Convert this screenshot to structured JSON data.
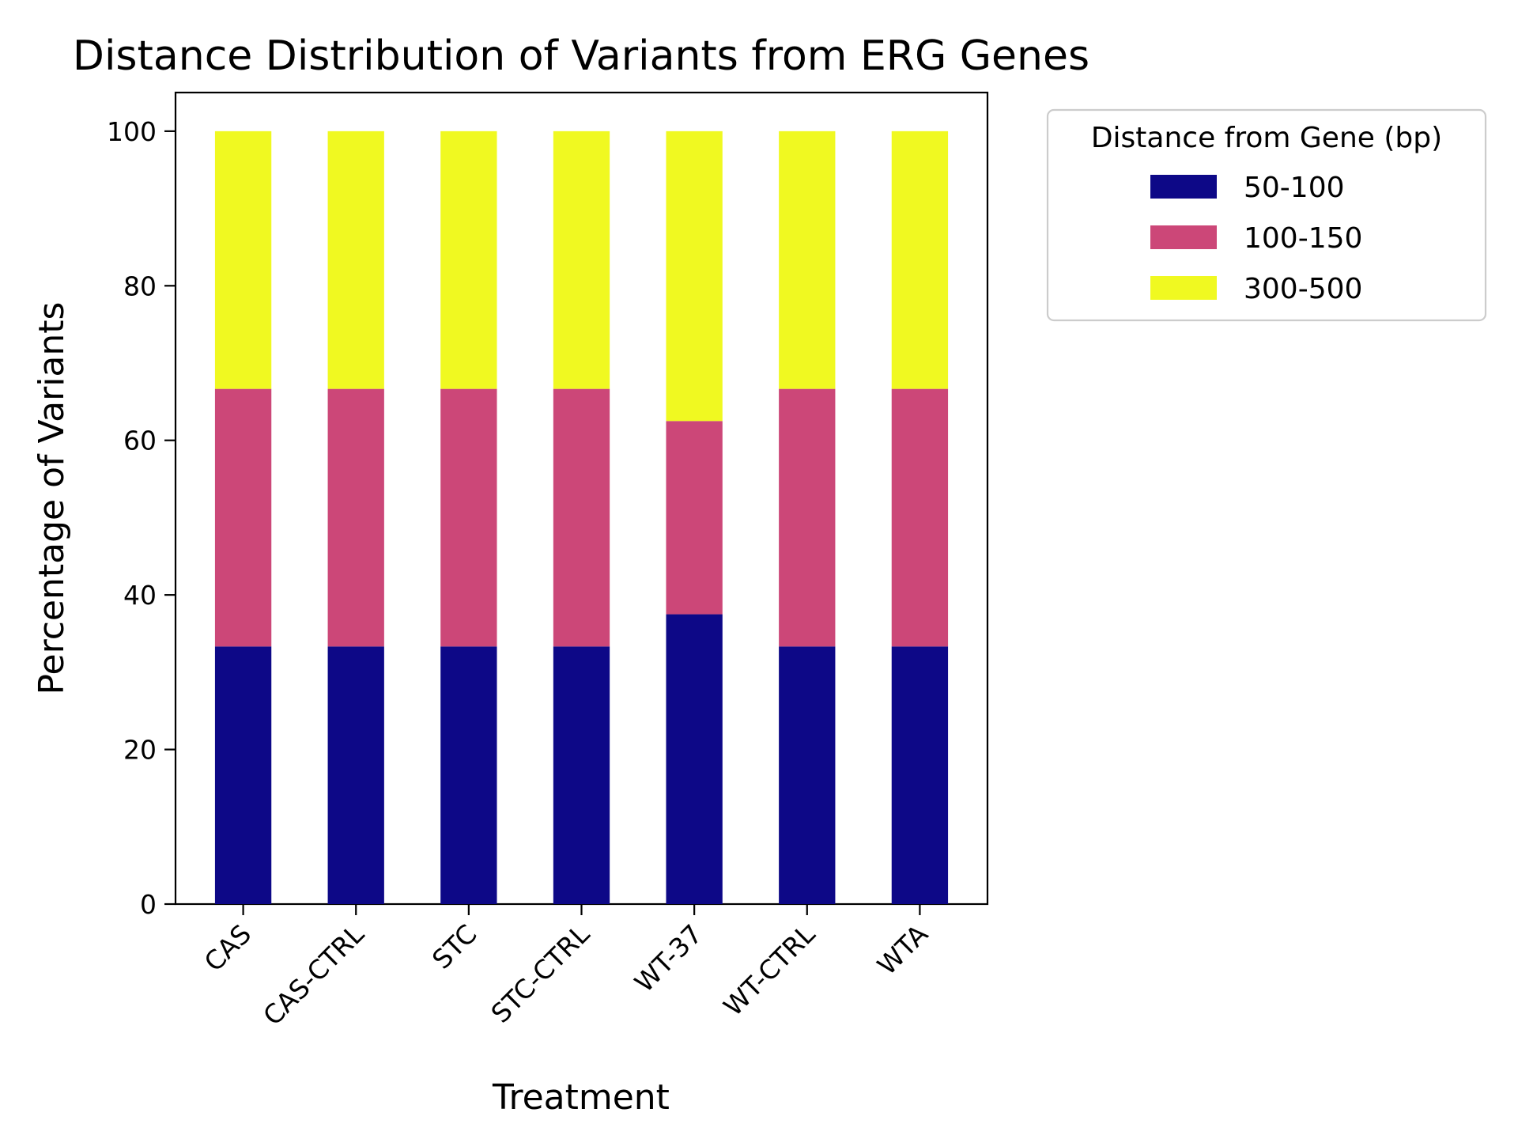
{
  "chart_data": {
    "type": "bar",
    "stacked": true,
    "title": "Distance Distribution of Variants from ERG Genes",
    "xlabel": "Treatment",
    "ylabel": "Percentage of Variants",
    "ylim": [
      0,
      105
    ],
    "yticks": [
      0,
      20,
      40,
      60,
      80,
      100
    ],
    "categories": [
      "CAS",
      "CAS-CTRL",
      "STC",
      "STC-CTRL",
      "WT-37",
      "WT-CTRL",
      "WTA"
    ],
    "series": [
      {
        "name": "50-100",
        "color": "#0d0887",
        "values": [
          33.33,
          33.33,
          33.33,
          33.33,
          37.5,
          33.33,
          33.33
        ]
      },
      {
        "name": "100-150",
        "color": "#cc4778",
        "values": [
          33.33,
          33.33,
          33.33,
          33.33,
          25.0,
          33.33,
          33.33
        ]
      },
      {
        "name": "300-500",
        "color": "#f0f921",
        "values": [
          33.34,
          33.34,
          33.34,
          33.34,
          37.5,
          33.34,
          33.34
        ]
      }
    ],
    "legend": {
      "title": "Distance from Gene (bp)",
      "placement": "outside-right-top"
    },
    "grid": false
  }
}
